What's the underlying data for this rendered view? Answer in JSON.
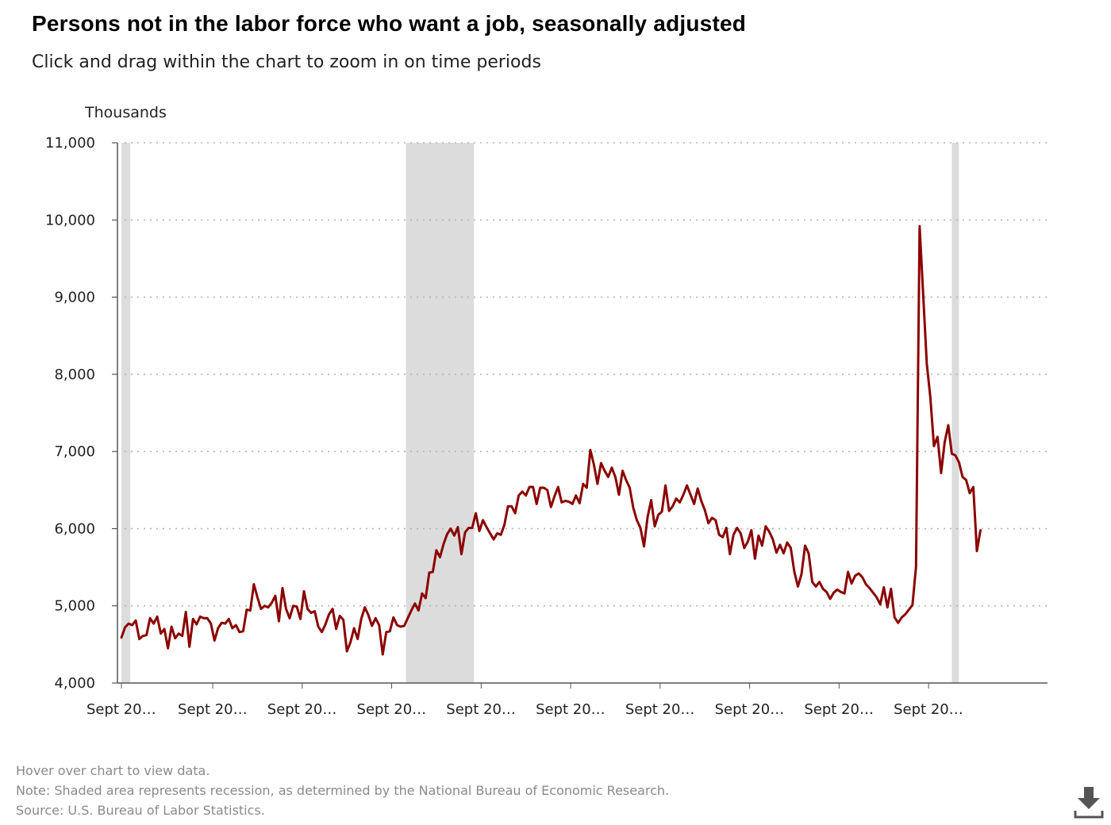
{
  "title": "Persons not in the labor force who want a job, seasonally adjusted",
  "subtitle": "Click and drag within the chart to zoom in on time periods",
  "footer": {
    "hover": "Hover over chart to view data.",
    "note": "Note: Shaded area represents recession, as determined by the National Bureau of Economic Research.",
    "source": "Source: U.S. Bureau of Labor Statistics."
  },
  "download_icon": "download-icon",
  "chart_data": {
    "type": "line",
    "ylabel": "Thousands",
    "ylim": [
      4000,
      11000
    ],
    "yticks": [
      4000,
      5000,
      6000,
      7000,
      8000,
      9000,
      10000,
      11000
    ],
    "ytick_labels": [
      "4,000",
      "5,000",
      "6,000",
      "7,000",
      "8,000",
      "9,000",
      "10,000",
      "11,000"
    ],
    "xlim": [
      0,
      258
    ],
    "xticks": [
      0,
      25.5,
      50.5,
      75.5,
      100.5,
      125.5,
      150.5,
      175.5,
      200.5,
      225.5
    ],
    "xtick_labels": [
      "Sept 20…",
      "Sept 20…",
      "Sept 20…",
      "Sept 20…",
      "Sept 20…",
      "Sept 20…",
      "Sept 20…",
      "Sept 20…",
      "Sept 20…",
      "Sept 20…"
    ],
    "grid": true,
    "line_color": "#8b0000",
    "recession_color": "#dcdcdc",
    "recessions": [
      [
        0,
        2.5
      ],
      [
        79.5,
        98.5
      ],
      [
        232,
        234
      ]
    ],
    "series": [
      {
        "values": [
          4590,
          4720,
          4770,
          4750,
          4810,
          4570,
          4610,
          4620,
          4840,
          4770,
          4860,
          4640,
          4700,
          4450,
          4730,
          4580,
          4640,
          4610,
          4920,
          4470,
          4830,
          4760,
          4860,
          4840,
          4840,
          4770,
          4550,
          4710,
          4780,
          4770,
          4830,
          4710,
          4750,
          4660,
          4670,
          4950,
          4940,
          5280,
          5110,
          4960,
          5000,
          4980,
          5040,
          5130,
          4800,
          5230,
          4960,
          4840,
          5000,
          4990,
          4830,
          5190,
          4960,
          4910,
          4930,
          4730,
          4660,
          4760,
          4890,
          4960,
          4700,
          4870,
          4820,
          4410,
          4530,
          4710,
          4570,
          4830,
          4980,
          4880,
          4740,
          4840,
          4750,
          4370,
          4660,
          4670,
          4850,
          4750,
          4730,
          4740,
          4840,
          4940,
          5030,
          4940,
          5160,
          5100,
          5430,
          5440,
          5720,
          5630,
          5800,
          5930,
          6000,
          5910,
          6020,
          5670,
          5950,
          6010,
          6010,
          6200,
          5970,
          6110,
          6020,
          5940,
          5860,
          5940,
          5920,
          6050,
          6290,
          6290,
          6200,
          6430,
          6480,
          6430,
          6540,
          6540,
          6320,
          6530,
          6530,
          6500,
          6280,
          6420,
          6540,
          6340,
          6360,
          6350,
          6320,
          6430,
          6330,
          6580,
          6530,
          7020,
          6830,
          6580,
          6850,
          6750,
          6670,
          6790,
          6670,
          6440,
          6750,
          6630,
          6530,
          6270,
          6110,
          6010,
          5770,
          6150,
          6370,
          6030,
          6180,
          6220,
          6560,
          6230,
          6290,
          6390,
          6340,
          6440,
          6560,
          6440,
          6320,
          6520,
          6360,
          6240,
          6070,
          6140,
          6110,
          5920,
          5890,
          6010,
          5670,
          5920,
          6010,
          5940,
          5750,
          5830,
          5980,
          5610,
          5910,
          5780,
          6030,
          5960,
          5860,
          5690,
          5790,
          5680,
          5820,
          5750,
          5440,
          5250,
          5410,
          5780,
          5680,
          5310,
          5250,
          5310,
          5220,
          5180,
          5090,
          5170,
          5210,
          5180,
          5160,
          5440,
          5290,
          5390,
          5420,
          5370,
          5280,
          5230,
          5170,
          5110,
          5020,
          5240,
          4980,
          5220,
          4850,
          4780,
          4850,
          4890,
          4950,
          5010,
          5510,
          9920,
          9030,
          8140,
          7700,
          7070,
          7190,
          6720,
          7120,
          7340,
          6970,
          6950,
          6860,
          6670,
          6630,
          6460,
          6540,
          5710,
          5980
        ]
      }
    ]
  }
}
